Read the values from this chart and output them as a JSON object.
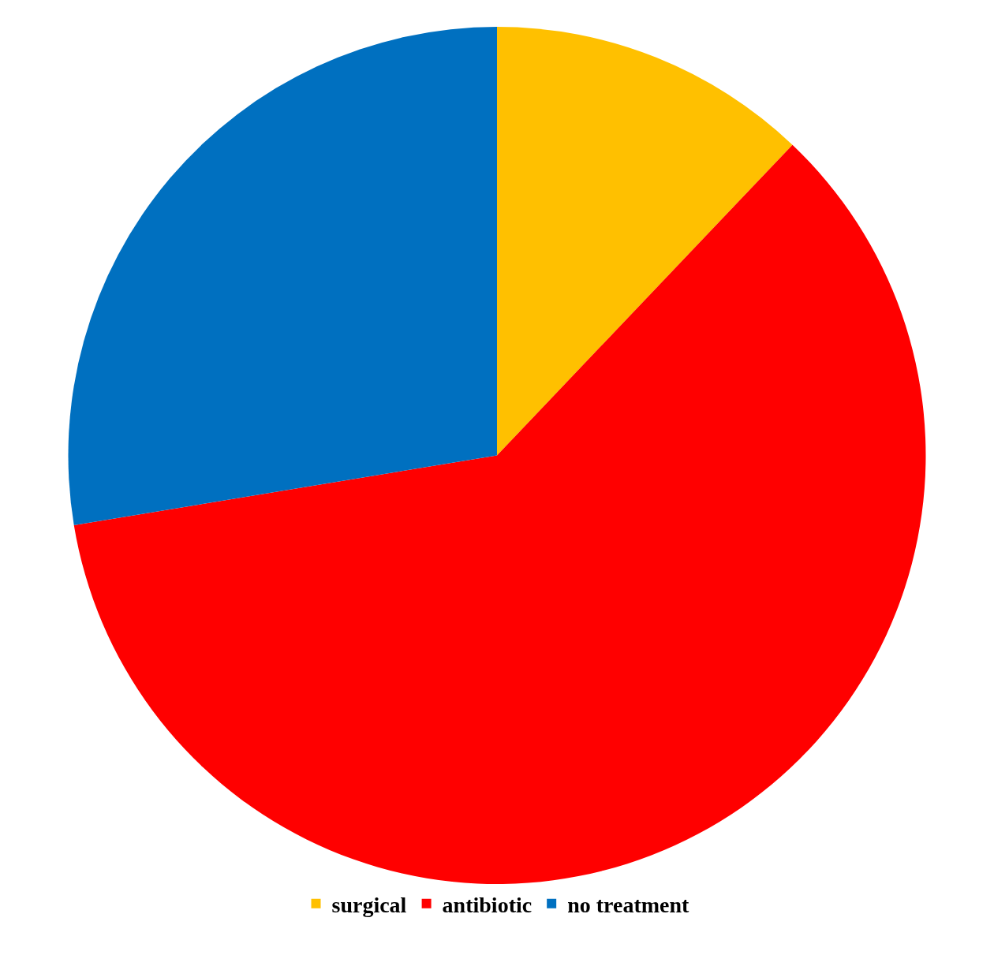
{
  "chart_data": {
    "type": "pie",
    "categories": [
      "surgical",
      "antibiotic",
      "no treatment"
    ],
    "values": [
      12.1,
      60.3,
      27.6
    ],
    "colors": [
      "#ffc000",
      "#ff0000",
      "#0070c0"
    ],
    "legend": "bottom"
  }
}
